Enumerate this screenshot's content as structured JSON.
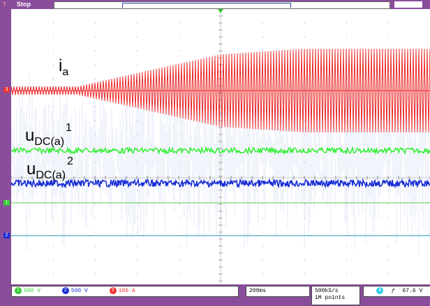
{
  "top": {
    "state": "Stop",
    "trig_mark": "T"
  },
  "labels": {
    "ia_main": "i",
    "ia_sub": "a",
    "u1_main": "u",
    "u1_sub": "DC(a)",
    "u1_sup": "1",
    "u2_main": "u",
    "u2_sub": "DC(a)",
    "u2_sup": "2"
  },
  "markers": {
    "ch3": "3",
    "ch1": "1",
    "ch2": "2"
  },
  "channels": [
    {
      "num": "1",
      "scale": "500 V",
      "color": "#33cc33"
    },
    {
      "num": "2",
      "scale": "500 V",
      "color": "#1a2fd6"
    },
    {
      "num": "3",
      "scale": "100 A",
      "color": "#ee3333"
    }
  ],
  "timebase": "200ms",
  "sample_rate": "500kS/s",
  "record_length": "1M points",
  "trigger": {
    "source": "4",
    "slope": "ƒ",
    "level": "67.6 V",
    "color": "#33ccee"
  },
  "colors": {
    "ia": "#ee2a2a",
    "u1": "#22ee22",
    "u2": "#1a2fd6",
    "noise": "#a8b8ee",
    "grid": "#888888",
    "ref1": "#55cc55",
    "ref2": "#1a8fb5"
  }
}
